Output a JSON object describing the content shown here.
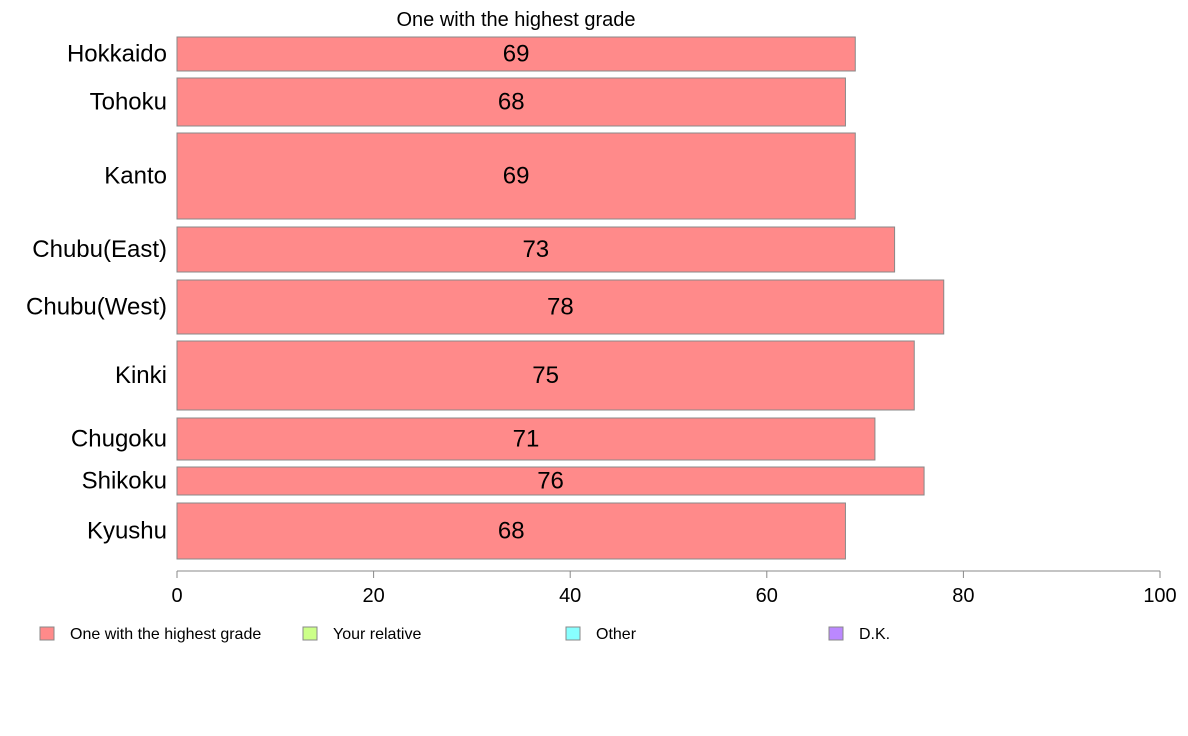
{
  "chart_data": {
    "type": "bar",
    "orientation": "horizontal",
    "title": "One with the highest grade",
    "categories": [
      "Hokkaido",
      "Tohoku",
      "Kanto",
      "Chubu(East)",
      "Chubu(West)",
      "Kinki",
      "Chugoku",
      "Shikoku",
      "Kyushu"
    ],
    "series": [
      {
        "name": "One with the highest grade",
        "color": "#ff8a8a",
        "values": [
          69,
          68,
          69,
          73,
          78,
          75,
          71,
          76,
          68
        ],
        "labels": [
          "69",
          "68",
          "69",
          "73",
          "78",
          "75",
          "71",
          "76",
          "68"
        ]
      }
    ],
    "xlim": [
      0,
      100
    ],
    "xticks": [
      0,
      20,
      40,
      60,
      80,
      100
    ],
    "xtick_labels": [
      "0",
      "20",
      "40",
      "60",
      "80",
      "100"
    ],
    "grid": false,
    "legend": {
      "placement": "bottom",
      "entries": [
        {
          "label": "One with the highest grade",
          "color": "#ff8a8a"
        },
        {
          "label": "Your relative",
          "color": "#ccff88"
        },
        {
          "label": "Other",
          "color": "#88ffff"
        },
        {
          "label": "D.K.",
          "color": "#bb88ff"
        }
      ]
    }
  }
}
